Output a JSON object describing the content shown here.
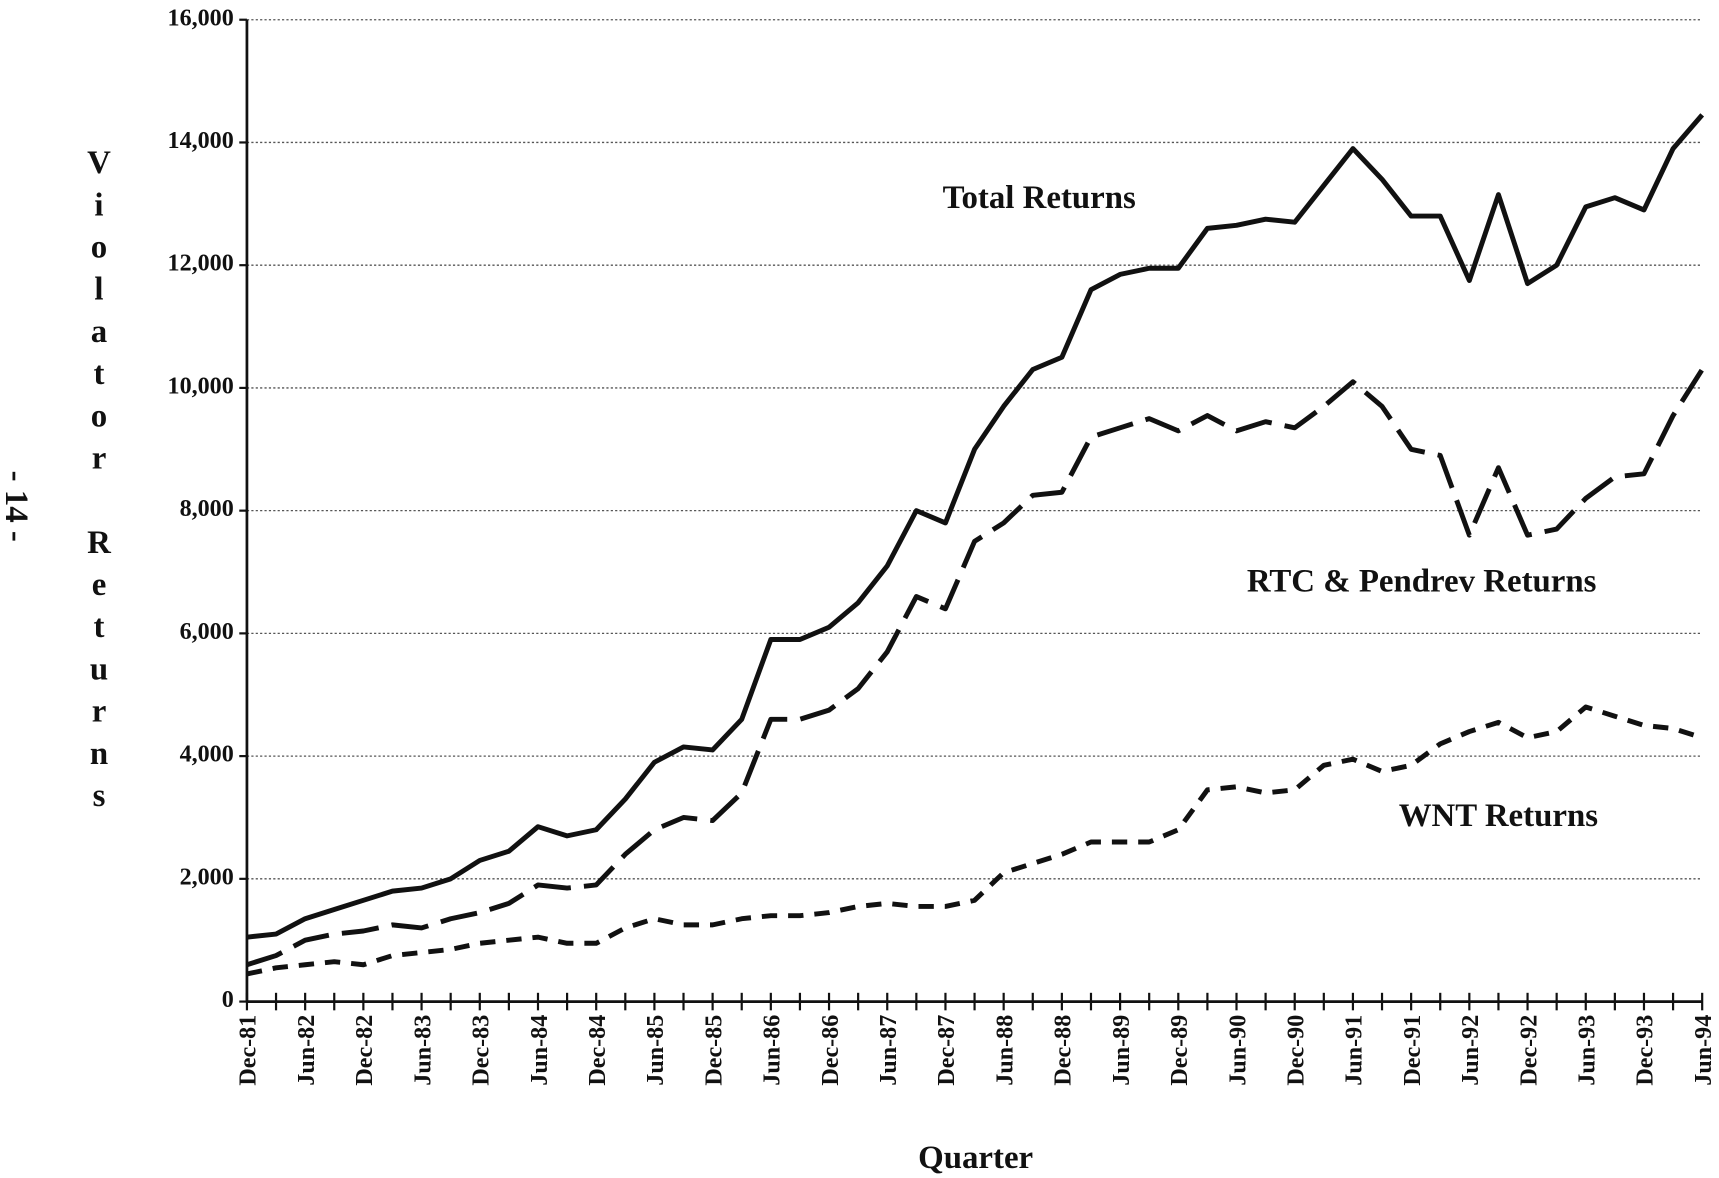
{
  "chart_data": {
    "type": "line",
    "page_number": "- 14 -",
    "x_label": "Quarter",
    "y_label": "Violator Returns",
    "categories": [
      "Dec-81",
      null,
      "Jun-82",
      null,
      "Dec-82",
      null,
      "Jun-83",
      null,
      "Dec-83",
      null,
      "Jun-84",
      null,
      "Dec-84",
      null,
      "Jun-85",
      null,
      "Dec-85",
      null,
      "Jun-86",
      null,
      "Dec-86",
      null,
      "Jun-87",
      null,
      "Dec-87",
      null,
      "Jun-88",
      null,
      "Dec-88",
      null,
      "Jun-89",
      null,
      "Dec-89",
      null,
      "Jun-90",
      null,
      "Dec-90",
      null,
      "Jun-91",
      null,
      "Dec-91",
      null,
      "Jun-92",
      null,
      "Dec-92",
      null,
      "Jun-93",
      null,
      "Dec-93",
      null,
      "Jun-94"
    ],
    "series": [
      {
        "name": "Total Returns",
        "color": "#111111",
        "dash": "solid",
        "values": [
          1050,
          1100,
          1350,
          1500,
          1650,
          1800,
          1850,
          2000,
          2300,
          2450,
          2850,
          2700,
          2800,
          3300,
          3900,
          4150,
          4100,
          4600,
          5900,
          5900,
          6100,
          6500,
          7100,
          8000,
          7800,
          9000,
          9700,
          10300,
          10500,
          11600,
          11850,
          11950,
          11950,
          12600,
          12650,
          12750,
          12700,
          13300,
          13900,
          13400,
          12800,
          12800,
          11750,
          13150,
          11700,
          12000,
          12950,
          13100,
          12900,
          13900,
          14450
        ]
      },
      {
        "name": "RTC & Pendrev Returns",
        "color": "#111111",
        "dash": "long",
        "values": [
          600,
          750,
          1000,
          1100,
          1150,
          1250,
          1200,
          1350,
          1450,
          1600,
          1900,
          1850,
          1900,
          2400,
          2800,
          3000,
          2950,
          3400,
          4600,
          4600,
          4750,
          5100,
          5700,
          6600,
          6400,
          7500,
          7800,
          8250,
          8300,
          9200,
          9350,
          9500,
          9300,
          9550,
          9300,
          9450,
          9350,
          9700,
          10100,
          9700,
          9000,
          8900,
          7600,
          8700,
          7600,
          7700,
          8200,
          8550,
          8600,
          9550,
          10300
        ]
      },
      {
        "name": "WNT Returns",
        "color": "#111111",
        "dash": "short",
        "values": [
          450,
          550,
          600,
          650,
          600,
          750,
          800,
          850,
          950,
          1000,
          1050,
          950,
          950,
          1200,
          1350,
          1250,
          1250,
          1350,
          1400,
          1400,
          1450,
          1550,
          1600,
          1550,
          1550,
          1650,
          2100,
          2250,
          2400,
          2600,
          2600,
          2600,
          2800,
          3450,
          3500,
          3400,
          3450,
          3850,
          3950,
          3750,
          3850,
          4200,
          4400,
          4550,
          4300,
          4400,
          4800,
          4650,
          4500,
          4450,
          4300
        ]
      }
    ],
    "ylim": [
      0,
      16000
    ],
    "yticks": [
      0,
      {
        "value": 2000,
        "label": "2,000"
      },
      {
        "value": 4000,
        "label": "4,000"
      },
      {
        "value": 6000,
        "label": "6,000"
      },
      {
        "value": 8000,
        "label": "8,000"
      },
      {
        "value": 10000,
        "label": "10,000"
      },
      {
        "value": 12000,
        "label": "12,000"
      },
      {
        "value": 14000,
        "label": "14,000"
      },
      {
        "value": 16000,
        "label": "16,000"
      }
    ],
    "grid": true,
    "legend": "direct"
  }
}
